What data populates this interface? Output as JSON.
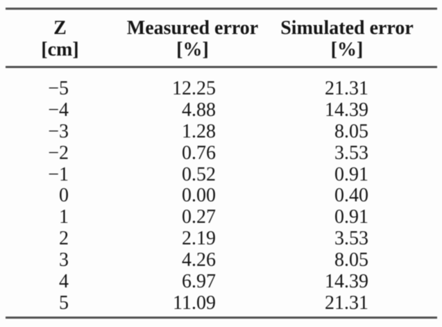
{
  "table": {
    "header": {
      "col1": {
        "line1": "Z",
        "line2": "[cm]"
      },
      "col2": {
        "line1": "Measured error",
        "line2": "[%]"
      },
      "col3": {
        "line1": "Simulated error",
        "line2": "[%]"
      }
    },
    "rows": [
      {
        "z": "−5",
        "measured": "12.25",
        "simulated": "21.31"
      },
      {
        "z": "−4",
        "measured": "4.88",
        "simulated": "14.39"
      },
      {
        "z": "−3",
        "measured": "1.28",
        "simulated": "8.05"
      },
      {
        "z": "−2",
        "measured": "0.76",
        "simulated": "3.53"
      },
      {
        "z": "−1",
        "measured": "0.52",
        "simulated": "0.91"
      },
      {
        "z": "0",
        "measured": "0.00",
        "simulated": "0.40"
      },
      {
        "z": "1",
        "measured": "0.27",
        "simulated": "0.91"
      },
      {
        "z": "2",
        "measured": "2.19",
        "simulated": "3.53"
      },
      {
        "z": "3",
        "measured": "4.26",
        "simulated": "8.05"
      },
      {
        "z": "4",
        "measured": "6.97",
        "simulated": "14.39"
      },
      {
        "z": "5",
        "measured": "11.09",
        "simulated": "21.31"
      }
    ],
    "colors": {
      "text": "#161616",
      "rule": "#4f4f4f",
      "background": "#fdfdfd"
    }
  }
}
